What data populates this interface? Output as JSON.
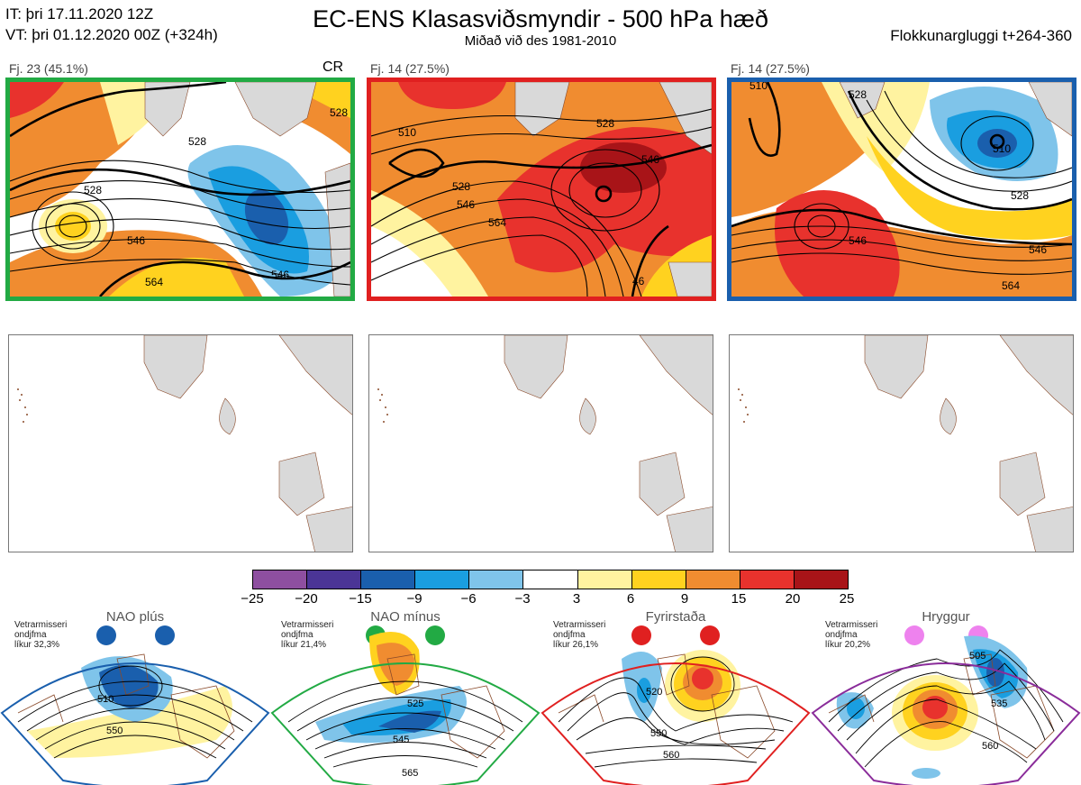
{
  "header": {
    "init_time": "IT: þri 17.11.2020 12Z",
    "valid_time": "VT: þri 01.12.2020 00Z  (+324h)",
    "title": "EC-ENS Klasasviðsmyndir - 500 hPa hæð",
    "subtitle": "Miðað við des 1981-2010",
    "window": "Flokkunargluggi t+264-360"
  },
  "clusters": [
    {
      "label": "Fj. 23 (45.1%)",
      "tag": "CR",
      "border_color": "#22aa44",
      "contours": [
        "528",
        "528",
        "528",
        "546",
        "546",
        "564"
      ]
    },
    {
      "label": "Fj. 14 (27.5%)",
      "tag": "",
      "border_color": "#e02020",
      "contours": [
        "510",
        "528",
        "528",
        "546",
        "546",
        "564",
        "46"
      ]
    },
    {
      "label": "Fj. 14 (27.5%)",
      "tag": "",
      "border_color": "#1a5fad",
      "contours": [
        "510",
        "510",
        "528",
        "528",
        "546",
        "546",
        "564"
      ]
    }
  ],
  "colorbar": {
    "colors": [
      "#8e4fa0",
      "#4b3596",
      "#1a5fad",
      "#1a9ee0",
      "#7fc4ea",
      "#ffffff",
      "#fff3a0",
      "#ffd21f",
      "#f08c30",
      "#e8322d",
      "#a81418"
    ],
    "ticks": [
      "−25",
      "−20",
      "−15",
      "−9",
      "−6",
      "−3",
      "3",
      "6",
      "9",
      "15",
      "20",
      "25"
    ]
  },
  "regimes": [
    {
      "name": "NAO plús",
      "info1": "Vetrarmisseri",
      "info2": "ondjfma",
      "info3": "líkur 32,3%",
      "dot_color": "#1a5fad",
      "border_color": "#1a5fad",
      "contours": [
        "510",
        "550"
      ]
    },
    {
      "name": "NAO mínus",
      "info1": "Vetrarmisseri",
      "info2": "ondjfma",
      "info3": "líkur 21,4%",
      "dot_color": "#22aa44",
      "border_color": "#22aa44",
      "contours": [
        "525",
        "545",
        "565"
      ]
    },
    {
      "name": "Fyrirstaða",
      "info1": "Vetrarmisseri",
      "info2": "ondjfma",
      "info3": "líkur 26,1%",
      "dot_color": "#e02020",
      "border_color": "#e02020",
      "contours": [
        "520",
        "550",
        "560"
      ]
    },
    {
      "name": "Hryggur",
      "info1": "Vetrarmisseri",
      "info2": "ondjfma",
      "info3": "líkur 20,2%",
      "dot_color": "#ee82ee",
      "border_color": "#8a2c9a",
      "contours": [
        "505",
        "535",
        "560"
      ]
    }
  ]
}
